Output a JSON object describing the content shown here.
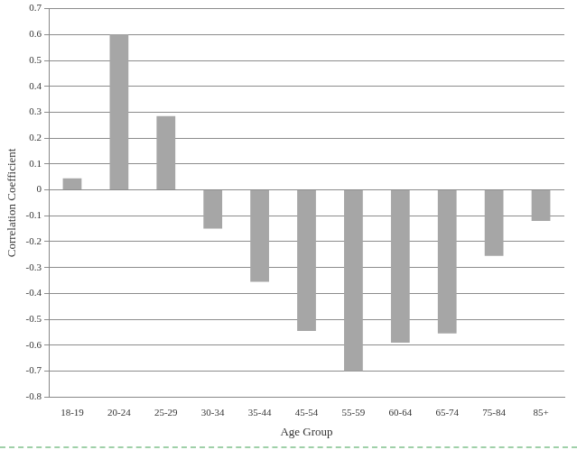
{
  "chart_data": {
    "type": "bar",
    "x_label": "Age Group",
    "y_label": "Correlation Coefficient",
    "categories": [
      "18-19",
      "20-24",
      "25-29",
      "30-34",
      "35-44",
      "45-54",
      "55-59",
      "60-64",
      "65-74",
      "75-84",
      "85+"
    ],
    "values": [
      0.045,
      0.6,
      0.285,
      -0.15,
      -0.355,
      -0.545,
      -0.7,
      -0.59,
      -0.555,
      -0.255,
      -0.12
    ],
    "color": "#a6a6a6",
    "ylim": [
      -0.8,
      0.7
    ],
    "yticks": [
      -0.8,
      -0.7,
      -0.6,
      -0.5,
      -0.4,
      -0.3,
      -0.2,
      -0.1,
      0,
      0.1,
      0.2,
      0.3,
      0.4,
      0.5,
      0.6,
      0.7
    ],
    "grid": true
  }
}
